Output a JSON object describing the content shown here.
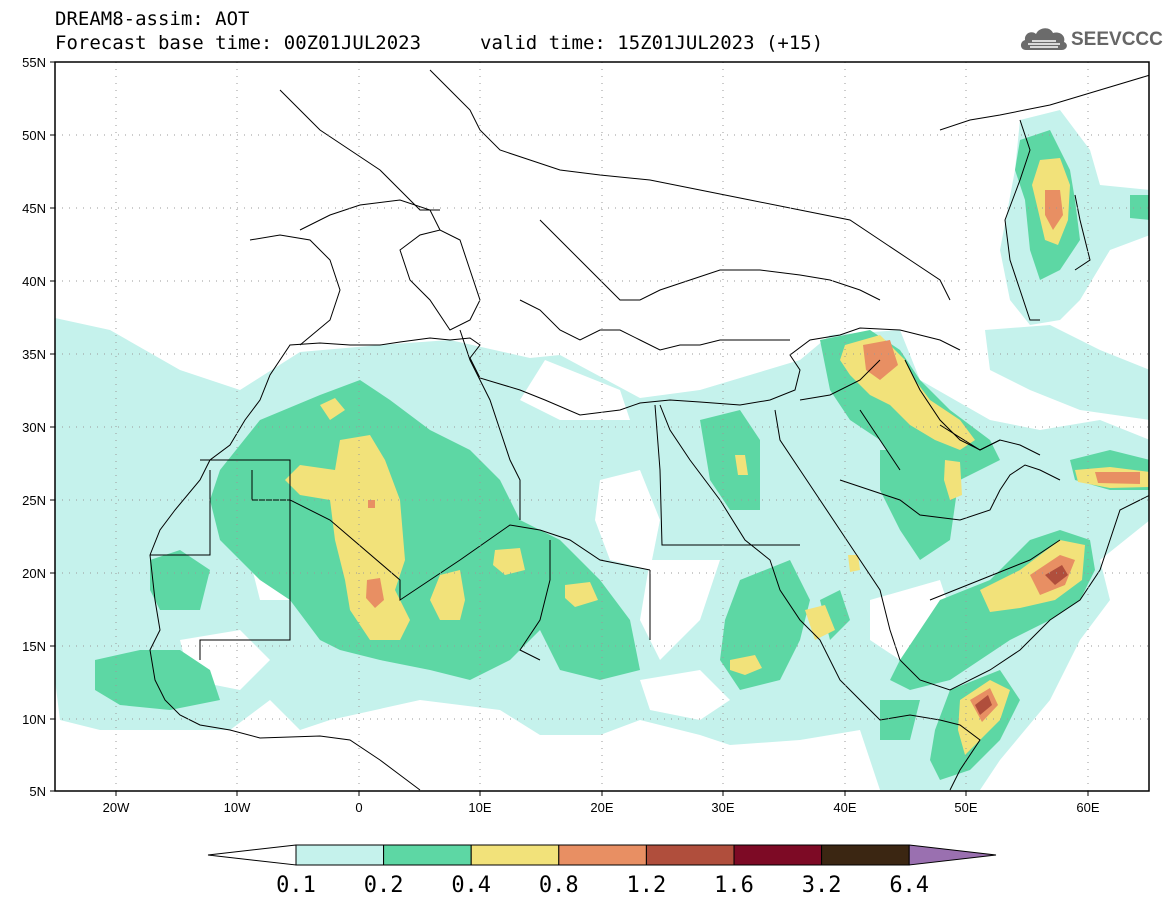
{
  "title": {
    "line1": "DREAM8-assim: AOT",
    "line2_base": "Forecast base time: 00Z01JUL2023",
    "line2_valid": "valid time: 15Z01JUL2023 (+15)"
  },
  "logo": {
    "text": "SEEVCCC",
    "icon": "cloud-icon"
  },
  "map": {
    "projection": "lat-lon",
    "lon_range": [
      -25,
      65
    ],
    "lat_range": [
      5,
      55
    ],
    "grid": "dotted",
    "lat_labels": [
      "55N",
      "50N",
      "45N",
      "40N",
      "35N",
      "30N",
      "25N",
      "20N",
      "15N",
      "10N",
      "5N"
    ],
    "lon_labels": [
      "20W",
      "10W",
      "0",
      "10E",
      "20E",
      "30E",
      "40E",
      "50E",
      "60E"
    ],
    "variable": "AOT"
  },
  "colorbar": {
    "labels": [
      "0.1",
      "0.2",
      "0.4",
      "0.8",
      "1.2",
      "1.6",
      "3.2",
      "6.4"
    ],
    "colors": [
      "#c5f2ec",
      "#5dd7a4",
      "#f2e27a",
      "#e88f63",
      "#b04e3c",
      "#7d0a25",
      "#3b2612",
      "#9a70b0"
    ],
    "low_end_color": "#ffffff"
  }
}
